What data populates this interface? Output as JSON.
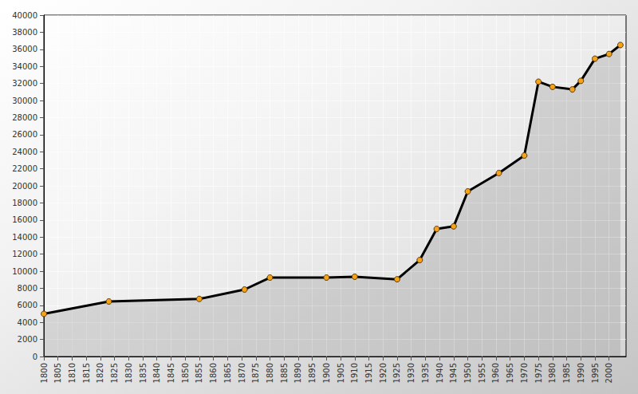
{
  "chart_data": {
    "type": "line",
    "x": [
      1800,
      1823,
      1855,
      1871,
      1880,
      1900,
      1910,
      1925,
      1933,
      1939,
      1945,
      1950,
      1961,
      1970,
      1975,
      1980,
      1987,
      1990,
      1995,
      2000,
      2004
    ],
    "values": [
      5000,
      6450,
      6750,
      7850,
      9250,
      9250,
      9350,
      9050,
      11300,
      14950,
      15250,
      19350,
      21500,
      23550,
      32200,
      31600,
      31300,
      32300,
      34900,
      35450,
      36500
    ],
    "color": "#000000",
    "marker": "circle",
    "xlim": [
      1800,
      2006
    ],
    "xticks": [
      1800,
      1805,
      1810,
      1815,
      1820,
      1825,
      1830,
      1835,
      1840,
      1845,
      1850,
      1855,
      1860,
      1865,
      1870,
      1875,
      1880,
      1885,
      1890,
      1895,
      1900,
      1905,
      1910,
      1915,
      1920,
      1925,
      1930,
      1935,
      1940,
      1945,
      1950,
      1955,
      1960,
      1965,
      1970,
      1975,
      1980,
      1985,
      1990,
      1995,
      2000
    ],
    "ylim": [
      0,
      40000
    ],
    "yticks": [
      0,
      2000,
      4000,
      6000,
      8000,
      10000,
      12000,
      14000,
      16000,
      18000,
      20000,
      22000,
      24000,
      26000,
      28000,
      30000,
      32000,
      34000,
      36000,
      38000,
      40000
    ],
    "grid": true
  }
}
